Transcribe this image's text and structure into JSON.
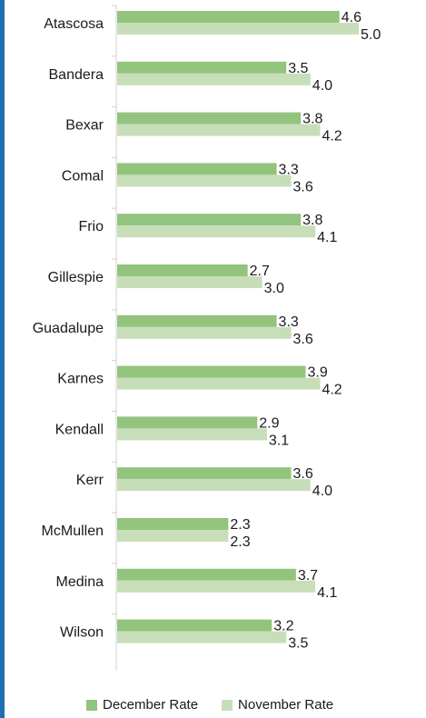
{
  "chart_data": {
    "type": "bar",
    "orientation": "horizontal",
    "categories": [
      "Atascosa",
      "Bandera",
      "Bexar",
      "Comal",
      "Frio",
      "Gillespie",
      "Guadalupe",
      "Karnes",
      "Kendall",
      "Kerr",
      "McMullen",
      "Medina",
      "Wilson"
    ],
    "series": [
      {
        "name": "December Rate",
        "color": "#93C47D",
        "values": [
          4.6,
          3.5,
          3.8,
          3.3,
          3.8,
          2.7,
          3.3,
          3.9,
          2.9,
          3.6,
          2.3,
          3.7,
          3.2
        ]
      },
      {
        "name": "November Rate",
        "color": "#C8DEB9",
        "values": [
          5.0,
          4.0,
          4.2,
          3.6,
          4.1,
          3.0,
          3.6,
          4.2,
          3.1,
          4.0,
          2.3,
          4.1,
          3.5
        ]
      }
    ],
    "xlim": [
      0,
      5.0
    ],
    "grid": false,
    "legend_position": "bottom"
  },
  "legend": {
    "december_label": "December Rate",
    "november_label": "November Rate"
  }
}
